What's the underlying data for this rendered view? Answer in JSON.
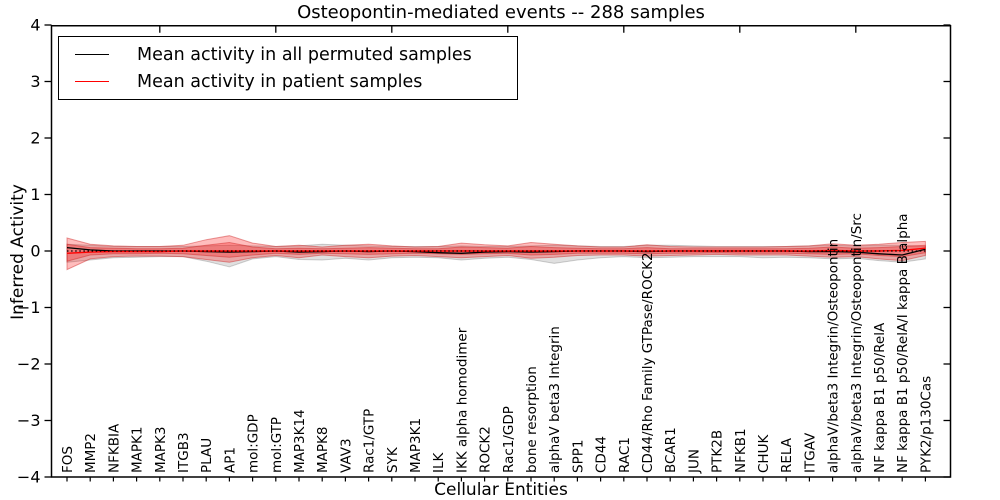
{
  "title": "Osteopontin-mediated events -- 288 samples",
  "legend": {
    "entries": [
      {
        "label": "Mean activity in all permuted samples",
        "color": "#000000"
      },
      {
        "label": "Mean activity in patient samples",
        "color": "#ff0000"
      }
    ]
  },
  "axes": {
    "ylabel": "Inferred Activity",
    "xlabel": "Cellular Entities",
    "ytick_labels": [
      "4",
      "3",
      "2",
      "1",
      "0",
      "−1",
      "−2",
      "−3",
      "−4"
    ]
  },
  "chart_data": {
    "type": "line",
    "title": "Osteopontin-mediated events -- 288 samples",
    "xlabel": "Cellular Entities",
    "ylabel": "Inferred Activity",
    "ylim": [
      -4,
      4
    ],
    "yticks": [
      4,
      3,
      2,
      1,
      0,
      -1,
      -2,
      -3,
      -4
    ],
    "grid": false,
    "legend_position": "upper left",
    "categories": [
      "FOS",
      "MMP2",
      "NFKBIA",
      "MAPK1",
      "MAPK3",
      "ITGB3",
      "PLAU",
      "AP1",
      "mol:GDP",
      "mol:GTP",
      "MAP3K14",
      "MAPK8",
      "VAV3",
      "Rac1/GTP",
      "SYK",
      "MAP3K1",
      "ILK",
      "IKK alpha homodimer",
      "ROCK2",
      "Rac1/GDP",
      "bone resorption",
      "alphaV beta3 Integrin",
      "SPP1",
      "CD44",
      "RAC1",
      "CD44/Rho Family GTPase/ROCK2",
      "BCAR1",
      "JUN",
      "PTK2B",
      "NFKB1",
      "CHUK",
      "RELA",
      "ITGAV",
      "alphaV/beta3 Integrin/Osteopontin",
      "alphaV/beta3 Integrin/Osteopontin/Src",
      "NF kappa B1 p50/RelA",
      "NF kappa B1 p50/RelA/I kappa B alpha",
      "PYK2/p130Cas"
    ],
    "series": [
      {
        "name": "Mean activity in all permuted samples",
        "color": "#000000",
        "style": "solid",
        "values": [
          0.06,
          0.02,
          0.0,
          0.0,
          0.0,
          0.0,
          -0.01,
          -0.02,
          -0.01,
          0.0,
          -0.02,
          -0.01,
          0.0,
          -0.01,
          0.0,
          -0.01,
          -0.03,
          -0.04,
          -0.02,
          -0.01,
          -0.02,
          -0.01,
          0.0,
          0.0,
          0.0,
          -0.01,
          0.0,
          0.0,
          0.0,
          0.0,
          0.0,
          0.0,
          -0.01,
          -0.01,
          -0.02,
          -0.05,
          -0.07,
          0.03
        ]
      },
      {
        "name": "Mean activity in patient samples",
        "color": "#ff0000",
        "style": "solid",
        "values": [
          -0.04,
          -0.02,
          -0.01,
          -0.01,
          -0.01,
          0.0,
          0.0,
          0.0,
          0.0,
          0.0,
          0.0,
          0.0,
          0.0,
          0.0,
          0.0,
          0.0,
          0.0,
          0.0,
          0.0,
          0.0,
          0.0,
          0.0,
          0.0,
          0.0,
          0.0,
          0.0,
          0.0,
          0.0,
          0.0,
          0.0,
          0.0,
          0.0,
          0.0,
          0.01,
          0.0,
          0.0,
          0.01,
          0.05
        ]
      }
    ],
    "zero_line": {
      "y": 0,
      "style": "dotted",
      "color": "#000000"
    },
    "bands": [
      {
        "name": "permuted-sample-range",
        "fill": "#000000",
        "fill_opacity": 0.12,
        "edge": "#000000",
        "edge_opacity": 0.18,
        "hi": [
          0.12,
          0.1,
          0.08,
          0.08,
          0.08,
          0.08,
          0.09,
          0.1,
          0.09,
          0.08,
          0.09,
          0.12,
          0.1,
          0.09,
          0.08,
          0.08,
          0.08,
          0.09,
          0.08,
          0.08,
          0.09,
          0.1,
          0.09,
          0.08,
          0.08,
          0.1,
          0.1,
          0.09,
          0.08,
          0.08,
          0.08,
          0.08,
          0.09,
          0.1,
          0.09,
          0.1,
          0.1,
          0.08
        ],
        "lo": [
          -0.2,
          -0.16,
          -0.12,
          -0.11,
          -0.1,
          -0.1,
          -0.18,
          -0.28,
          -0.14,
          -0.1,
          -0.15,
          -0.16,
          -0.13,
          -0.16,
          -0.12,
          -0.11,
          -0.12,
          -0.16,
          -0.13,
          -0.11,
          -0.15,
          -0.22,
          -0.16,
          -0.12,
          -0.1,
          -0.12,
          -0.11,
          -0.1,
          -0.1,
          -0.1,
          -0.12,
          -0.11,
          -0.12,
          -0.14,
          -0.13,
          -0.17,
          -0.2,
          -0.14
        ]
      },
      {
        "name": "patient-sample-range-outer",
        "fill": "#ff0000",
        "fill_opacity": 0.26,
        "edge": "#cc2222",
        "edge_opacity": 0.45,
        "hi": [
          0.23,
          0.12,
          0.09,
          0.08,
          0.08,
          0.1,
          0.2,
          0.27,
          0.14,
          0.08,
          0.1,
          0.07,
          0.1,
          0.12,
          0.09,
          0.07,
          0.08,
          0.14,
          0.11,
          0.09,
          0.15,
          0.12,
          0.09,
          0.07,
          0.07,
          0.11,
          0.08,
          0.07,
          0.07,
          0.07,
          0.07,
          0.08,
          0.09,
          0.13,
          0.1,
          0.12,
          0.15,
          0.17
        ],
        "lo": [
          -0.33,
          -0.14,
          -0.1,
          -0.09,
          -0.09,
          -0.1,
          -0.15,
          -0.2,
          -0.12,
          -0.08,
          -0.12,
          -0.07,
          -0.1,
          -0.12,
          -0.09,
          -0.08,
          -0.1,
          -0.12,
          -0.1,
          -0.08,
          -0.13,
          -0.11,
          -0.08,
          -0.07,
          -0.07,
          -0.09,
          -0.08,
          -0.07,
          -0.06,
          -0.07,
          -0.07,
          -0.07,
          -0.09,
          -0.11,
          -0.1,
          -0.14,
          -0.17,
          -0.08
        ]
      },
      {
        "name": "patient-sample-range-inner",
        "fill": "#ff0000",
        "fill_opacity": 0.26,
        "edge": "#cc2222",
        "edge_opacity": 0.45,
        "hi": [
          0.12,
          0.06,
          0.05,
          0.04,
          0.04,
          0.05,
          0.1,
          0.15,
          0.07,
          0.04,
          0.05,
          0.04,
          0.05,
          0.06,
          0.05,
          0.04,
          0.04,
          0.07,
          0.06,
          0.05,
          0.08,
          0.06,
          0.05,
          0.04,
          0.04,
          0.06,
          0.04,
          0.04,
          0.04,
          0.04,
          0.04,
          0.04,
          0.05,
          0.07,
          0.05,
          0.06,
          0.08,
          0.1
        ],
        "lo": [
          -0.18,
          -0.07,
          -0.05,
          -0.05,
          -0.04,
          -0.05,
          -0.08,
          -0.11,
          -0.07,
          -0.04,
          -0.06,
          -0.04,
          -0.05,
          -0.06,
          -0.05,
          -0.04,
          -0.05,
          -0.06,
          -0.05,
          -0.04,
          -0.07,
          -0.06,
          -0.04,
          -0.04,
          -0.04,
          -0.05,
          -0.04,
          -0.04,
          -0.03,
          -0.04,
          -0.04,
          -0.04,
          -0.05,
          -0.06,
          -0.05,
          -0.08,
          -0.1,
          -0.03
        ]
      }
    ]
  }
}
